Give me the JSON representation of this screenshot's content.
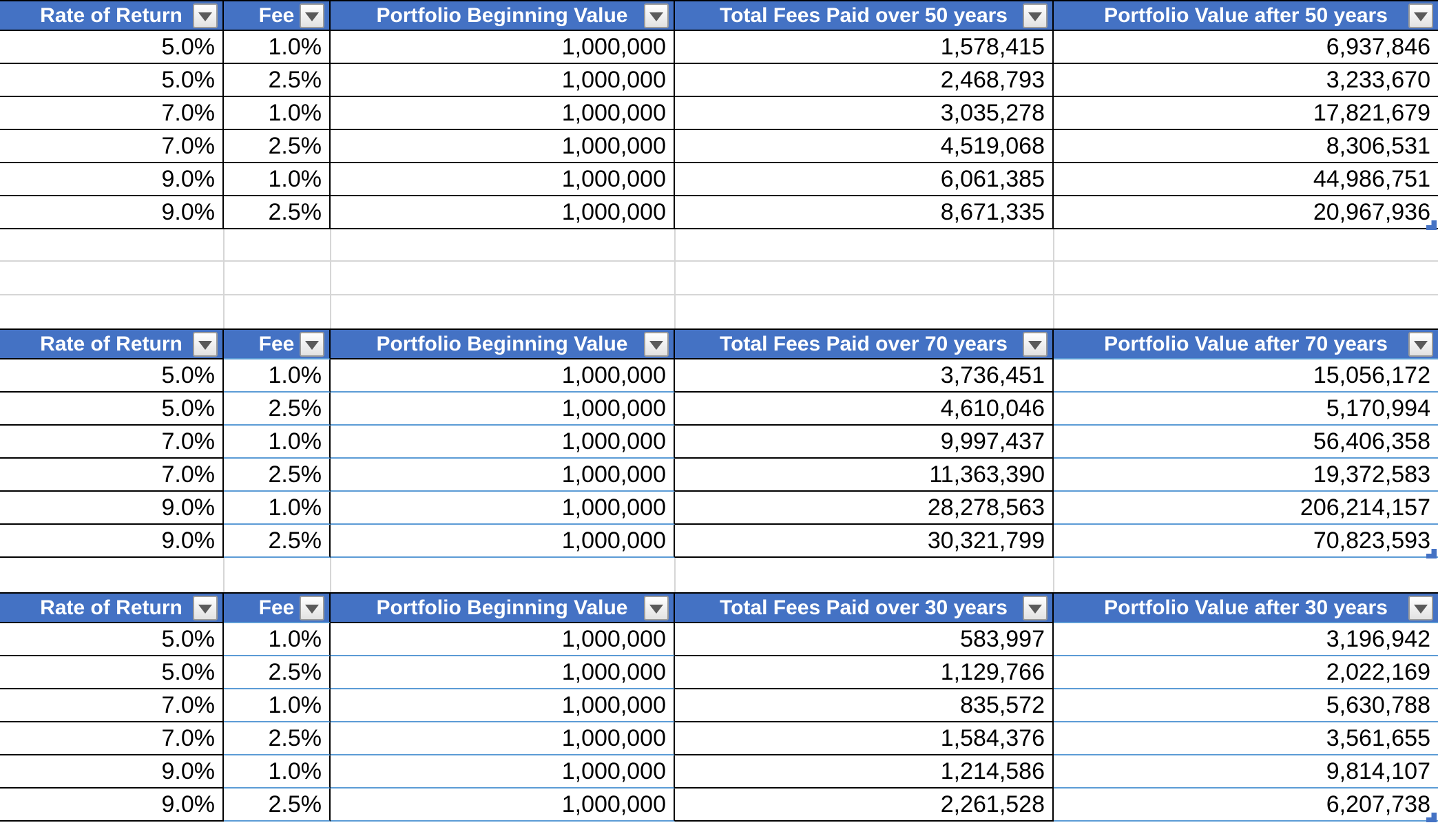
{
  "colors": {
    "header_bg": "#4472C4",
    "header_text": "#FFFFFF",
    "border_dark": "#000000",
    "row_border_blue": "#5B9BD5",
    "gridline": "#D6D6D6",
    "resize_handle": "#4472C4",
    "filter_arrow": "#5A5A5A"
  },
  "icons": {
    "filter_dropdown": "chevron-down"
  },
  "tables": [
    {
      "id": "fees-50-years",
      "headers": [
        "Rate of Return",
        "Fee",
        "Portfolio Beginning Value",
        "Total Fees Paid over 50 years",
        "Portfolio Value after 50 years"
      ],
      "rows": [
        [
          "5.0%",
          "1.0%",
          "1,000,000",
          "1,578,415",
          "6,937,846"
        ],
        [
          "5.0%",
          "2.5%",
          "1,000,000",
          "2,468,793",
          "3,233,670"
        ],
        [
          "7.0%",
          "1.0%",
          "1,000,000",
          "3,035,278",
          "17,821,679"
        ],
        [
          "7.0%",
          "2.5%",
          "1,000,000",
          "4,519,068",
          "8,306,531"
        ],
        [
          "9.0%",
          "1.0%",
          "1,000,000",
          "6,061,385",
          "44,986,751"
        ],
        [
          "9.0%",
          "2.5%",
          "1,000,000",
          "8,671,335",
          "20,967,936"
        ]
      ]
    },
    {
      "id": "fees-70-years",
      "headers": [
        "Rate of Return",
        "Fee",
        "Portfolio Beginning Value",
        "Total Fees Paid over 70 years",
        "Portfolio Value after 70 years"
      ],
      "rows": [
        [
          "5.0%",
          "1.0%",
          "1,000,000",
          "3,736,451",
          "15,056,172"
        ],
        [
          "5.0%",
          "2.5%",
          "1,000,000",
          "4,610,046",
          "5,170,994"
        ],
        [
          "7.0%",
          "1.0%",
          "1,000,000",
          "9,997,437",
          "56,406,358"
        ],
        [
          "7.0%",
          "2.5%",
          "1,000,000",
          "11,363,390",
          "19,372,583"
        ],
        [
          "9.0%",
          "1.0%",
          "1,000,000",
          "28,278,563",
          "206,214,157"
        ],
        [
          "9.0%",
          "2.5%",
          "1,000,000",
          "30,321,799",
          "70,823,593"
        ]
      ]
    },
    {
      "id": "fees-30-years",
      "headers": [
        "Rate of Return",
        "Fee",
        "Portfolio Beginning Value",
        "Total Fees Paid over 30 years",
        "Portfolio Value after 30 years"
      ],
      "rows": [
        [
          "5.0%",
          "1.0%",
          "1,000,000",
          "583,997",
          "3,196,942"
        ],
        [
          "5.0%",
          "2.5%",
          "1,000,000",
          "1,129,766",
          "2,022,169"
        ],
        [
          "7.0%",
          "1.0%",
          "1,000,000",
          "835,572",
          "5,630,788"
        ],
        [
          "7.0%",
          "2.5%",
          "1,000,000",
          "1,584,376",
          "3,561,655"
        ],
        [
          "9.0%",
          "1.0%",
          "1,000,000",
          "1,214,586",
          "9,814,107"
        ],
        [
          "9.0%",
          "2.5%",
          "1,000,000",
          "2,261,528",
          "6,207,738"
        ]
      ]
    }
  ]
}
